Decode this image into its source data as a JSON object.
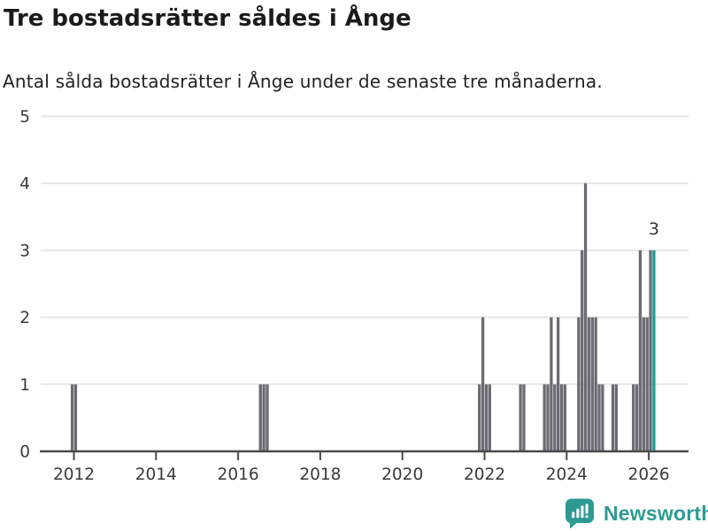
{
  "header": {
    "title": "Tre bostadsrätter såldes i Ånge",
    "subtitle": "Antal sålda bostadsrätter i Ånge under de senaste tre månaderna."
  },
  "footer": {
    "brand": "Newsworthy"
  },
  "chart_data": {
    "type": "bar",
    "title": "Tre bostadsrätter såldes i Ånge",
    "subtitle": "Antal sålda bostadsrätter i Ånge under de senaste tre månaderna.",
    "xlabel": "",
    "ylabel": "",
    "x_axis": {
      "ticks": [
        2012,
        2014,
        2016,
        2018,
        2020,
        2022,
        2024,
        2026
      ],
      "range_months": [
        "2011-02",
        "2026-11"
      ],
      "grid": false
    },
    "y_axis": {
      "ticks": [
        0,
        1,
        2,
        3,
        4,
        5
      ],
      "range": [
        0,
        5
      ],
      "grid": true
    },
    "months": [
      {
        "m": "2011-12",
        "v": 1
      },
      {
        "m": "2012-01",
        "v": 1
      },
      {
        "m": "2016-07",
        "v": 1
      },
      {
        "m": "2016-08",
        "v": 1
      },
      {
        "m": "2016-09",
        "v": 1
      },
      {
        "m": "2021-11",
        "v": 1
      },
      {
        "m": "2021-12",
        "v": 2
      },
      {
        "m": "2022-01",
        "v": 1
      },
      {
        "m": "2022-02",
        "v": 1
      },
      {
        "m": "2022-11",
        "v": 1
      },
      {
        "m": "2022-12",
        "v": 1
      },
      {
        "m": "2023-06",
        "v": 1
      },
      {
        "m": "2023-07",
        "v": 1
      },
      {
        "m": "2023-08",
        "v": 2
      },
      {
        "m": "2023-09",
        "v": 1
      },
      {
        "m": "2023-10",
        "v": 2
      },
      {
        "m": "2023-11",
        "v": 1
      },
      {
        "m": "2023-12",
        "v": 1
      },
      {
        "m": "2024-04",
        "v": 2
      },
      {
        "m": "2024-05",
        "v": 3
      },
      {
        "m": "2024-06",
        "v": 4
      },
      {
        "m": "2024-07",
        "v": 2
      },
      {
        "m": "2024-08",
        "v": 2
      },
      {
        "m": "2024-09",
        "v": 2
      },
      {
        "m": "2024-10",
        "v": 1
      },
      {
        "m": "2024-11",
        "v": 1
      },
      {
        "m": "2025-02",
        "v": 1
      },
      {
        "m": "2025-03",
        "v": 1
      },
      {
        "m": "2025-08",
        "v": 1
      },
      {
        "m": "2025-09",
        "v": 1
      },
      {
        "m": "2025-10",
        "v": 3
      },
      {
        "m": "2025-11",
        "v": 2
      },
      {
        "m": "2025-12",
        "v": 2
      },
      {
        "m": "2026-01",
        "v": 3
      },
      {
        "m": "2026-02",
        "v": 3
      }
    ],
    "highlight": {
      "month": "2026-02",
      "value": 3,
      "label": "3"
    },
    "colors": {
      "bar": "#6B6B73",
      "highlight_bar": "#1E9A94",
      "grid_line": "#E7E7E7",
      "axis_line": "#4A4A4A",
      "tick_label": "#3A3A3A",
      "value_label": "#333333",
      "brand": "#2E9A93"
    }
  }
}
